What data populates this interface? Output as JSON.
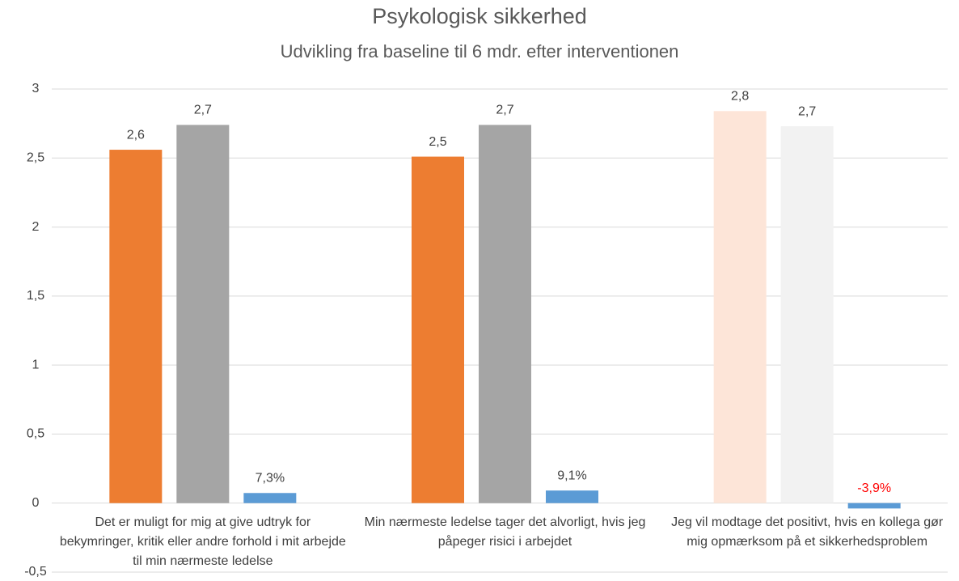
{
  "chart_data": {
    "type": "bar",
    "title": "Psykologisk sikkerhed",
    "subtitle": "Udvikling fra baseline til 6 mdr. efter interventionen",
    "categories": [
      "Det er muligt for mig at give udtryk for bekymringer, kritik eller andre forhold i mit arbejde til min nærmeste ledelse",
      "Min nærmeste ledelse tager det alvorligt, hvis jeg påpeger risici i arbejdet",
      "Jeg vil modtage det positivt, hvis en kollega gør mig opmærksom på et sikkerhedsproblem"
    ],
    "series": [
      {
        "colors": [
          "#ed7d31",
          "#ed7d31",
          "#fde5d8"
        ],
        "values": [
          2.56,
          2.51,
          2.84
        ],
        "value_labels": [
          "2,6",
          "2,5",
          "2,8"
        ]
      },
      {
        "colors": [
          "#a5a5a5",
          "#a5a5a5",
          "#f2f2f2"
        ],
        "values": [
          2.74,
          2.74,
          2.73
        ],
        "value_labels": [
          "2,7",
          "2,7",
          "2,7"
        ]
      },
      {
        "colors": [
          "#5b9bd5",
          "#5b9bd5",
          "#5b9bd5"
        ],
        "values": [
          0.073,
          0.091,
          -0.039
        ],
        "value_labels": [
          "7,3%",
          "9,1%",
          "-3,9%"
        ],
        "label_colors": [
          "#404040",
          "#404040",
          "#ff0000"
        ]
      }
    ],
    "ylim": [
      -0.5,
      3
    ],
    "yticks": [
      {
        "value": -0.5,
        "label": "-0,5"
      },
      0,
      {
        "value": 0.5,
        "label": "0,5"
      },
      1,
      {
        "value": 1.5,
        "label": "1,5"
      },
      2,
      {
        "value": 2.5,
        "label": "2,5"
      },
      3
    ],
    "grid": true
  }
}
